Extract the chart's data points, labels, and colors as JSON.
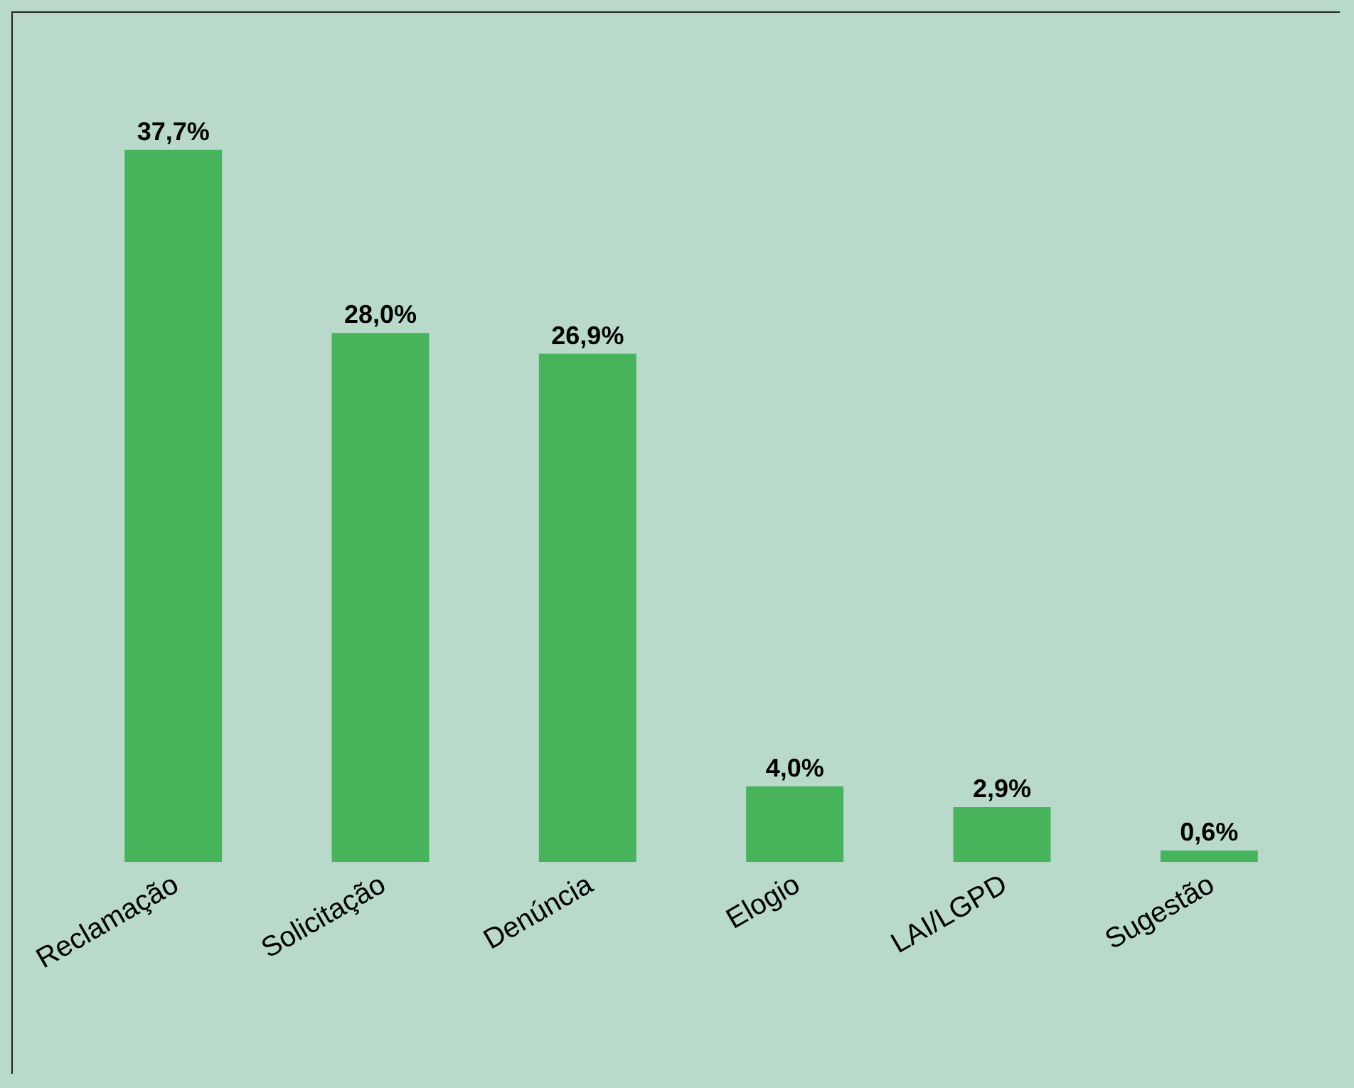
{
  "chart_data": {
    "type": "bar",
    "categories": [
      "Reclamação",
      "Solicitação",
      "Denúncia",
      "Elogio",
      "LAI/LGPD",
      "Sugestão"
    ],
    "values": [
      37.7,
      28.0,
      26.9,
      4.0,
      2.9,
      0.6
    ],
    "value_labels": [
      "37,7%",
      "28,0%",
      "26,9%",
      "4,0%",
      "2,9%",
      "0,6%"
    ],
    "color": "#47b35a",
    "grid": false,
    "legend": false
  }
}
